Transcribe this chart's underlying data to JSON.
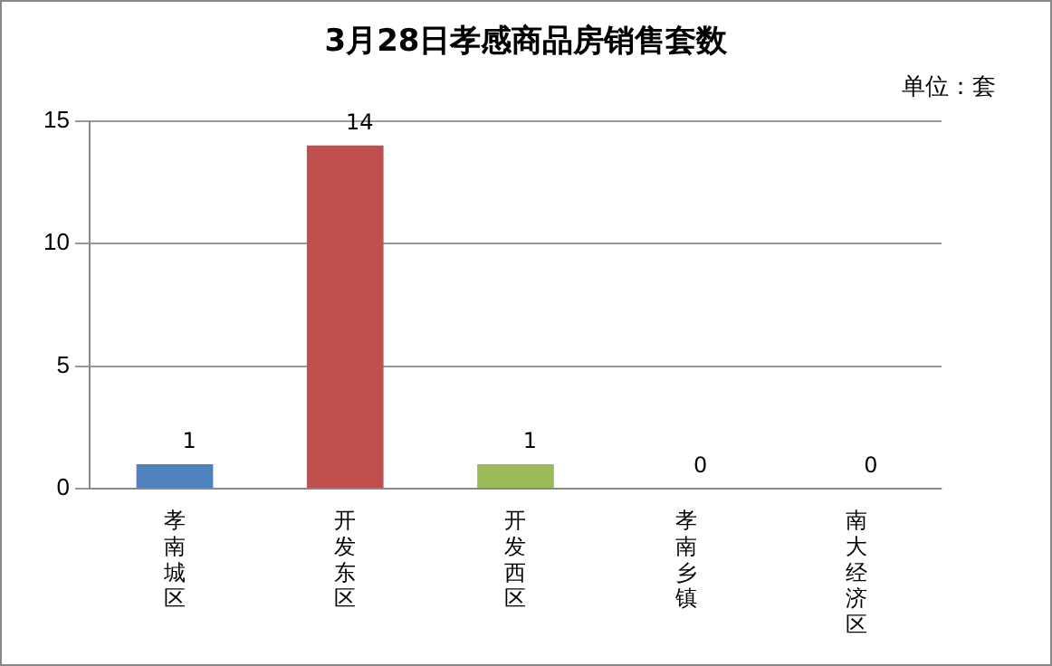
{
  "chart_data": {
    "type": "bar",
    "title": "3月28日孝感商品房销售套数",
    "annotations": [
      "单位：套"
    ],
    "categories": [
      "孝南城区",
      "开发东区",
      "开发西区",
      "孝南乡镇",
      "南大经济区"
    ],
    "values": [
      1,
      14,
      1,
      0,
      0
    ],
    "colors": [
      "#4f81bd",
      "#c0504d",
      "#9bbb59",
      "#8064a2",
      "#4bacc6"
    ],
    "ylim": [
      0,
      15
    ],
    "yticks": [
      0,
      5,
      10,
      15
    ],
    "grid": "y",
    "data_labels": true,
    "legend": false
  }
}
